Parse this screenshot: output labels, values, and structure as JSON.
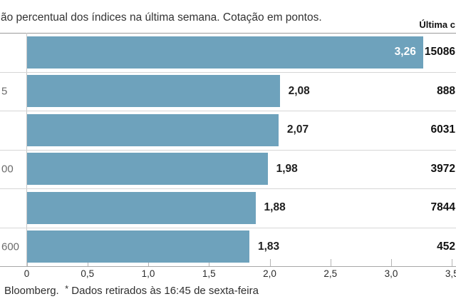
{
  "header": {
    "subtitle": "ão percentual dos índices na última semana. Cotação em pontos.",
    "right_column_label": "Última c"
  },
  "chart_data": {
    "type": "bar",
    "orientation": "horizontal",
    "subtitle": "ão percentual dos índices na última semana. Cotação em pontos.",
    "right_column_header": "Última c",
    "categories": [
      "",
      "5",
      "",
      "00",
      "",
      "600"
    ],
    "values": [
      3.26,
      2.08,
      2.07,
      1.98,
      1.88,
      1.83
    ],
    "value_labels": [
      "3,26",
      "2,08",
      "2,07",
      "1,98",
      "1,88",
      "1,83"
    ],
    "last_quotes": [
      "15086",
      "888",
      "6031",
      "3972",
      "7844",
      "452"
    ],
    "x_ticks": [
      "0",
      "0,5",
      "1,0",
      "1,5",
      "2,0",
      "2,5",
      "3,0",
      "3,5"
    ],
    "xlim": [
      0,
      3.5
    ],
    "bar_color": "#6EA2BC",
    "grid": "row-separators",
    "legend": "none"
  },
  "footer": {
    "source": "Bloomberg.",
    "note_marker": "*",
    "note": "Dados retirados às 16:45 de sexta-feira"
  }
}
